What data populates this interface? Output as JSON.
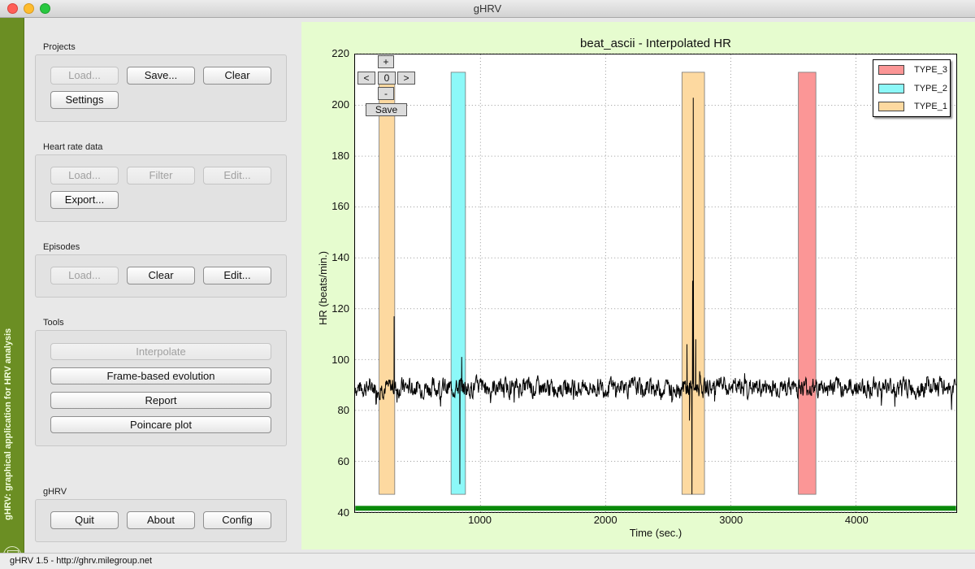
{
  "window": {
    "title": "gHRV"
  },
  "sidebar": {
    "caption": "gHRV: graphical application for HRV analysis",
    "logo_icon": "vitruvian-man-icon"
  },
  "projects": {
    "title": "Projects",
    "load": "Load...",
    "save": "Save...",
    "clear": "Clear",
    "settings": "Settings"
  },
  "heart_rate": {
    "title": "Heart rate data",
    "load": "Load...",
    "filter": "Filter",
    "edit": "Edit...",
    "export": "Export..."
  },
  "episodes": {
    "title": "Episodes",
    "load": "Load...",
    "clear": "Clear",
    "edit": "Edit..."
  },
  "tools": {
    "title": "Tools",
    "interpolate": "Interpolate",
    "frame": "Frame-based evolution",
    "report": "Report",
    "poincare": "Poincare plot"
  },
  "ghrv": {
    "title": "gHRV",
    "quit": "Quit",
    "about": "About",
    "config": "Config"
  },
  "plot_nav": {
    "plus": "+",
    "minus": "-",
    "left": "<",
    "right": ">",
    "zero": "0",
    "save": "Save"
  },
  "status": {
    "text": "gHRV 1.5 - http://ghrv.milegroup.net"
  },
  "colors": {
    "plot_background": "#e6fccf",
    "sidebar_green": "#6b8e23",
    "type1": "#fdd9a0",
    "type2": "#8cf8f8",
    "type3": "#fb9696"
  },
  "chart_data": {
    "type": "line",
    "title": "beat_ascii - Interpolated HR",
    "xlabel": "Time (sec.)",
    "ylabel": "HR (beats/min.)",
    "xlim": [
      0,
      4800
    ],
    "ylim": [
      40,
      220
    ],
    "xticks": [
      1000,
      2000,
      3000,
      4000
    ],
    "yticks": [
      40,
      60,
      80,
      100,
      120,
      140,
      160,
      180,
      200,
      220
    ],
    "grid": true,
    "legend_position": "top-right",
    "legend": [
      {
        "name": "TYPE_3",
        "color": "#fb9696"
      },
      {
        "name": "TYPE_2",
        "color": "#8cf8f8"
      },
      {
        "name": "TYPE_1",
        "color": "#fdd9a0"
      }
    ],
    "episodes": [
      {
        "type": "TYPE_1",
        "start": 190,
        "end": 315,
        "ymin": 47,
        "ymax": 213
      },
      {
        "type": "TYPE_2",
        "start": 765,
        "end": 880,
        "ymin": 47,
        "ymax": 213
      },
      {
        "type": "TYPE_1",
        "start": 2610,
        "end": 2790,
        "ymin": 47,
        "ymax": 213
      },
      {
        "type": "TYPE_3",
        "start": 3540,
        "end": 3680,
        "ymin": 47,
        "ymax": 213
      }
    ],
    "series": [
      {
        "baseline_hr": 89,
        "noise": 6,
        "spikes": [
          {
            "x": 310,
            "y": 117
          },
          {
            "x": 835,
            "y": 51
          },
          {
            "x": 850,
            "y": 101
          },
          {
            "x": 2650,
            "y": 106
          },
          {
            "x": 2670,
            "y": 76
          },
          {
            "x": 2690,
            "y": 47
          },
          {
            "x": 2695,
            "y": 131
          },
          {
            "x": 2700,
            "y": 203
          },
          {
            "x": 2720,
            "y": 108
          }
        ]
      }
    ],
    "baseline_band": {
      "y": 41.5,
      "color": "#0a8a0a"
    }
  }
}
